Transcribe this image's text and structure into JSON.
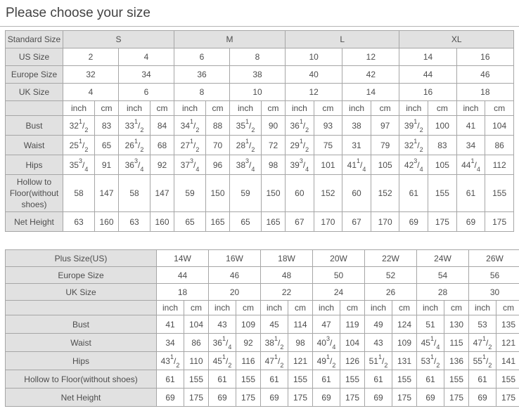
{
  "page": {
    "title": "Please choose your size"
  },
  "colors": {
    "header_bg": "#e1e1e1",
    "border": "#a6a6a6",
    "text": "#4d4d4d",
    "cell_bg": "#ffffff"
  },
  "tables": [
    {
      "name": "standard-size-table",
      "header_shaded": true,
      "rows": [
        {
          "kind": "sizes",
          "label": "Standard Size",
          "cells": [
            {
              "t": "S",
              "s": 4
            },
            {
              "t": "M",
              "s": 4
            },
            {
              "t": "L",
              "s": 4
            },
            {
              "t": "XL",
              "s": 4
            }
          ]
        },
        {
          "kind": "head",
          "label": "US Size",
          "cells": [
            {
              "t": "2",
              "s": 2
            },
            {
              "t": "4",
              "s": 2
            },
            {
              "t": "6",
              "s": 2
            },
            {
              "t": "8",
              "s": 2
            },
            {
              "t": "10",
              "s": 2
            },
            {
              "t": "12",
              "s": 2
            },
            {
              "t": "14",
              "s": 2
            },
            {
              "t": "16",
              "s": 2
            }
          ]
        },
        {
          "kind": "head",
          "label": "Europe Size",
          "cells": [
            {
              "t": "32",
              "s": 2
            },
            {
              "t": "34",
              "s": 2
            },
            {
              "t": "36",
              "s": 2
            },
            {
              "t": "38",
              "s": 2
            },
            {
              "t": "40",
              "s": 2
            },
            {
              "t": "42",
              "s": 2
            },
            {
              "t": "44",
              "s": 2
            },
            {
              "t": "46",
              "s": 2
            }
          ]
        },
        {
          "kind": "head",
          "label": "UK Size",
          "cells": [
            {
              "t": "4",
              "s": 2
            },
            {
              "t": "6",
              "s": 2
            },
            {
              "t": "8",
              "s": 2
            },
            {
              "t": "10",
              "s": 2
            },
            {
              "t": "12",
              "s": 2
            },
            {
              "t": "14",
              "s": 2
            },
            {
              "t": "16",
              "s": 2
            },
            {
              "t": "18",
              "s": 2
            }
          ]
        },
        {
          "kind": "units",
          "label": "",
          "cells": [
            {
              "t": "inch"
            },
            {
              "t": "cm"
            },
            {
              "t": "inch"
            },
            {
              "t": "cm"
            },
            {
              "t": "inch"
            },
            {
              "t": "cm"
            },
            {
              "t": "inch"
            },
            {
              "t": "cm"
            },
            {
              "t": "inch"
            },
            {
              "t": "cm"
            },
            {
              "t": "inch"
            },
            {
              "t": "cm"
            },
            {
              "t": "inch"
            },
            {
              "t": "cm"
            },
            {
              "t": "inch"
            },
            {
              "t": "cm"
            }
          ]
        },
        {
          "kind": "data",
          "label": "Bust",
          "cells": [
            {
              "t": "32",
              "f": "1/2"
            },
            {
              "t": "83"
            },
            {
              "t": "33",
              "f": "1/2"
            },
            {
              "t": "84"
            },
            {
              "t": "34",
              "f": "1/2"
            },
            {
              "t": "88"
            },
            {
              "t": "35",
              "f": "1/2"
            },
            {
              "t": "90"
            },
            {
              "t": "36",
              "f": "1/2"
            },
            {
              "t": "93"
            },
            {
              "t": "38"
            },
            {
              "t": "97"
            },
            {
              "t": "39",
              "f": "1/2"
            },
            {
              "t": "100"
            },
            {
              "t": "41"
            },
            {
              "t": "104"
            }
          ]
        },
        {
          "kind": "data",
          "label": "Waist",
          "cells": [
            {
              "t": "25",
              "f": "1/2"
            },
            {
              "t": "65"
            },
            {
              "t": "26",
              "f": "1/2"
            },
            {
              "t": "68"
            },
            {
              "t": "27",
              "f": "1/2"
            },
            {
              "t": "70"
            },
            {
              "t": "28",
              "f": "1/2"
            },
            {
              "t": "72"
            },
            {
              "t": "29",
              "f": "1/2"
            },
            {
              "t": "75"
            },
            {
              "t": "31"
            },
            {
              "t": "79"
            },
            {
              "t": "32",
              "f": "1/2"
            },
            {
              "t": "83"
            },
            {
              "t": "34"
            },
            {
              "t": "86"
            }
          ]
        },
        {
          "kind": "data",
          "label": "Hips",
          "cells": [
            {
              "t": "35",
              "f": "3/4"
            },
            {
              "t": "91"
            },
            {
              "t": "36",
              "f": "3/4"
            },
            {
              "t": "92"
            },
            {
              "t": "37",
              "f": "3/4"
            },
            {
              "t": "96"
            },
            {
              "t": "38",
              "f": "3/4"
            },
            {
              "t": "98"
            },
            {
              "t": "39",
              "f": "3/4"
            },
            {
              "t": "101"
            },
            {
              "t": "41",
              "f": "1/4"
            },
            {
              "t": "105"
            },
            {
              "t": "42",
              "f": "3/4"
            },
            {
              "t": "105"
            },
            {
              "t": "44",
              "f": "1/4"
            },
            {
              "t": "112"
            }
          ]
        },
        {
          "kind": "data",
          "label": "Hollow to Floor(without shoes)",
          "cells": [
            {
              "t": "58"
            },
            {
              "t": "147"
            },
            {
              "t": "58"
            },
            {
              "t": "147"
            },
            {
              "t": "59"
            },
            {
              "t": "150"
            },
            {
              "t": "59"
            },
            {
              "t": "150"
            },
            {
              "t": "60"
            },
            {
              "t": "152"
            },
            {
              "t": "60"
            },
            {
              "t": "152"
            },
            {
              "t": "61"
            },
            {
              "t": "155"
            },
            {
              "t": "61"
            },
            {
              "t": "155"
            }
          ]
        },
        {
          "kind": "data",
          "label": "Net Height",
          "cells": [
            {
              "t": "63"
            },
            {
              "t": "160"
            },
            {
              "t": "63"
            },
            {
              "t": "160"
            },
            {
              "t": "65"
            },
            {
              "t": "165"
            },
            {
              "t": "65"
            },
            {
              "t": "165"
            },
            {
              "t": "67"
            },
            {
              "t": "170"
            },
            {
              "t": "67"
            },
            {
              "t": "170"
            },
            {
              "t": "69"
            },
            {
              "t": "175"
            },
            {
              "t": "69"
            },
            {
              "t": "175"
            }
          ]
        }
      ]
    },
    {
      "name": "plus-size-table",
      "header_shaded": false,
      "rows": [
        {
          "kind": "sizes",
          "label": "Plus Size(US)",
          "cells": [
            {
              "t": "14W",
              "s": 2
            },
            {
              "t": "16W",
              "s": 2
            },
            {
              "t": "18W",
              "s": 2
            },
            {
              "t": "20W",
              "s": 2
            },
            {
              "t": "22W",
              "s": 2
            },
            {
              "t": "24W",
              "s": 2
            },
            {
              "t": "26W",
              "s": 2
            }
          ]
        },
        {
          "kind": "head",
          "label": "Europe Size",
          "cells": [
            {
              "t": "44",
              "s": 2
            },
            {
              "t": "46",
              "s": 2
            },
            {
              "t": "48",
              "s": 2
            },
            {
              "t": "50",
              "s": 2
            },
            {
              "t": "52",
              "s": 2
            },
            {
              "t": "54",
              "s": 2
            },
            {
              "t": "56",
              "s": 2
            }
          ]
        },
        {
          "kind": "head",
          "label": "UK Size",
          "cells": [
            {
              "t": "18",
              "s": 2
            },
            {
              "t": "20",
              "s": 2
            },
            {
              "t": "22",
              "s": 2
            },
            {
              "t": "24",
              "s": 2
            },
            {
              "t": "26",
              "s": 2
            },
            {
              "t": "28",
              "s": 2
            },
            {
              "t": "30",
              "s": 2
            }
          ]
        },
        {
          "kind": "units",
          "label": "",
          "cells": [
            {
              "t": "inch"
            },
            {
              "t": "cm"
            },
            {
              "t": "inch"
            },
            {
              "t": "cm"
            },
            {
              "t": "inch"
            },
            {
              "t": "cm"
            },
            {
              "t": "inch"
            },
            {
              "t": "cm"
            },
            {
              "t": "inch"
            },
            {
              "t": "cm"
            },
            {
              "t": "inch"
            },
            {
              "t": "cm"
            },
            {
              "t": "inch"
            },
            {
              "t": "cm"
            }
          ]
        },
        {
          "kind": "data",
          "label": "Bust",
          "cells": [
            {
              "t": "41"
            },
            {
              "t": "104"
            },
            {
              "t": "43"
            },
            {
              "t": "109"
            },
            {
              "t": "45"
            },
            {
              "t": "114"
            },
            {
              "t": "47"
            },
            {
              "t": "119"
            },
            {
              "t": "49"
            },
            {
              "t": "124"
            },
            {
              "t": "51"
            },
            {
              "t": "130"
            },
            {
              "t": "53"
            },
            {
              "t": "135"
            }
          ]
        },
        {
          "kind": "data",
          "label": "Waist",
          "cells": [
            {
              "t": "34"
            },
            {
              "t": "86"
            },
            {
              "t": "36",
              "f": "1/4"
            },
            {
              "t": "92"
            },
            {
              "t": "38",
              "f": "1/2"
            },
            {
              "t": "98"
            },
            {
              "t": "40",
              "f": "3/4"
            },
            {
              "t": "104"
            },
            {
              "t": "43"
            },
            {
              "t": "109"
            },
            {
              "t": "45",
              "f": "1/4"
            },
            {
              "t": "115"
            },
            {
              "t": "47",
              "f": "1/2"
            },
            {
              "t": "121"
            }
          ]
        },
        {
          "kind": "data",
          "label": "Hips",
          "cells": [
            {
              "t": "43",
              "f": "1/2"
            },
            {
              "t": "110"
            },
            {
              "t": "45",
              "f": "1/2"
            },
            {
              "t": "116"
            },
            {
              "t": "47",
              "f": "1/2"
            },
            {
              "t": "121"
            },
            {
              "t": "49",
              "f": "1/2"
            },
            {
              "t": "126"
            },
            {
              "t": "51",
              "f": "1/2"
            },
            {
              "t": "131"
            },
            {
              "t": "53",
              "f": "1/2"
            },
            {
              "t": "136"
            },
            {
              "t": "55",
              "f": "1/2"
            },
            {
              "t": "141"
            }
          ]
        },
        {
          "kind": "data",
          "label": "Hollow to Floor(without shoes)",
          "cells": [
            {
              "t": "61"
            },
            {
              "t": "155"
            },
            {
              "t": "61"
            },
            {
              "t": "155"
            },
            {
              "t": "61"
            },
            {
              "t": "155"
            },
            {
              "t": "61"
            },
            {
              "t": "155"
            },
            {
              "t": "61"
            },
            {
              "t": "155"
            },
            {
              "t": "61"
            },
            {
              "t": "155"
            },
            {
              "t": "61"
            },
            {
              "t": "155"
            }
          ]
        },
        {
          "kind": "data",
          "label": "Net Height",
          "cells": [
            {
              "t": "69"
            },
            {
              "t": "175"
            },
            {
              "t": "69"
            },
            {
              "t": "175"
            },
            {
              "t": "69"
            },
            {
              "t": "175"
            },
            {
              "t": "69"
            },
            {
              "t": "175"
            },
            {
              "t": "69"
            },
            {
              "t": "175"
            },
            {
              "t": "69"
            },
            {
              "t": "175"
            },
            {
              "t": "69"
            },
            {
              "t": "175"
            }
          ]
        }
      ]
    }
  ]
}
